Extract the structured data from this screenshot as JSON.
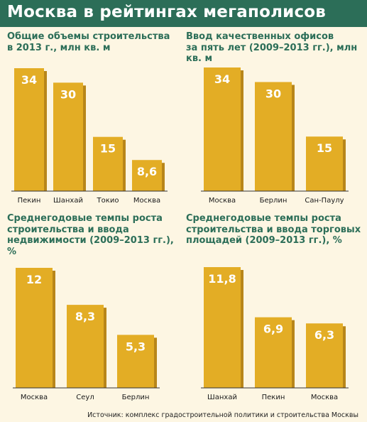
{
  "title": "Москва в рейтингах мегаполисов",
  "source": "Источник: комплекс градостроительной политики и строительства Москвы",
  "colors": {
    "bar": "#e3ad25",
    "bar_shade": "#b8861a",
    "header": "#2c6e58",
    "baseline": "#333333"
  },
  "chart_data": [
    {
      "type": "bar",
      "title": "Общие объемы строительства\nв 2013 г., млн кв. м",
      "categories": [
        "Пекин",
        "Шанхай",
        "Токио",
        "Москва"
      ],
      "values": [
        34,
        30,
        15,
        8.6
      ],
      "value_labels": [
        "34",
        "30",
        "15",
        "8,6"
      ],
      "ylim": [
        0,
        34
      ]
    },
    {
      "type": "bar",
      "title": "Ввод качественных офисов\nза пять лет (2009–2013 гг.), млн кв. м",
      "categories": [
        "Москва",
        "Берлин",
        "Сан-Паулу"
      ],
      "values": [
        34,
        30,
        15
      ],
      "value_labels": [
        "34",
        "30",
        "15"
      ],
      "ylim": [
        0,
        34
      ]
    },
    {
      "type": "bar",
      "title": "Среднегодовые темпы роста\nстроительства и ввода\nнедвижимости (2009–2013 гг.), %",
      "categories": [
        "Москва",
        "Сеул",
        "Берлин"
      ],
      "values": [
        12,
        8.3,
        5.3
      ],
      "value_labels": [
        "12",
        "8,3",
        "5,3"
      ],
      "ylim": [
        0,
        12
      ]
    },
    {
      "type": "bar",
      "title": "Среднегодовые темпы роста\nстроительства и ввода торговых\nплощадей (2009–2013 гг.), %",
      "categories": [
        "Шанхай",
        "Пекин",
        "Москва"
      ],
      "values": [
        11.8,
        6.9,
        6.3
      ],
      "value_labels": [
        "11,8",
        "6,9",
        "6,3"
      ],
      "ylim": [
        0,
        11.8
      ]
    }
  ]
}
